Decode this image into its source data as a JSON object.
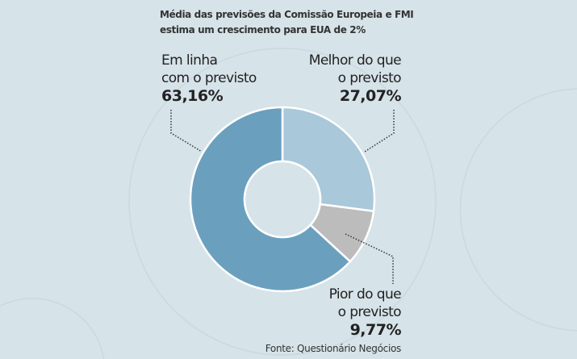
{
  "chart_data": {
    "type": "pie",
    "title": "Média das previsões da Comissão Europeia e FMI estima um crescimento para EUA de 2%",
    "title_lines": [
      "Média das previsões da Comissão Europeia e FMI",
      "estima um crescimento para EUA de 2%"
    ],
    "donut": true,
    "slices": [
      {
        "label_lines": [
          "Melhor do que",
          "o previsto"
        ],
        "value": 27.07,
        "value_label": "27,07%",
        "color": "#a9c8da"
      },
      {
        "label_lines": [
          "Pior do que",
          "o previsto"
        ],
        "value": 9.77,
        "value_label": "9,77%",
        "color": "#bcbcbc"
      },
      {
        "label_lines": [
          "Em linha",
          "com o previsto"
        ],
        "value": 63.16,
        "value_label": "63,16%",
        "color": "#6aa0be"
      }
    ],
    "source": "Fonte: Questionário Negócios"
  }
}
